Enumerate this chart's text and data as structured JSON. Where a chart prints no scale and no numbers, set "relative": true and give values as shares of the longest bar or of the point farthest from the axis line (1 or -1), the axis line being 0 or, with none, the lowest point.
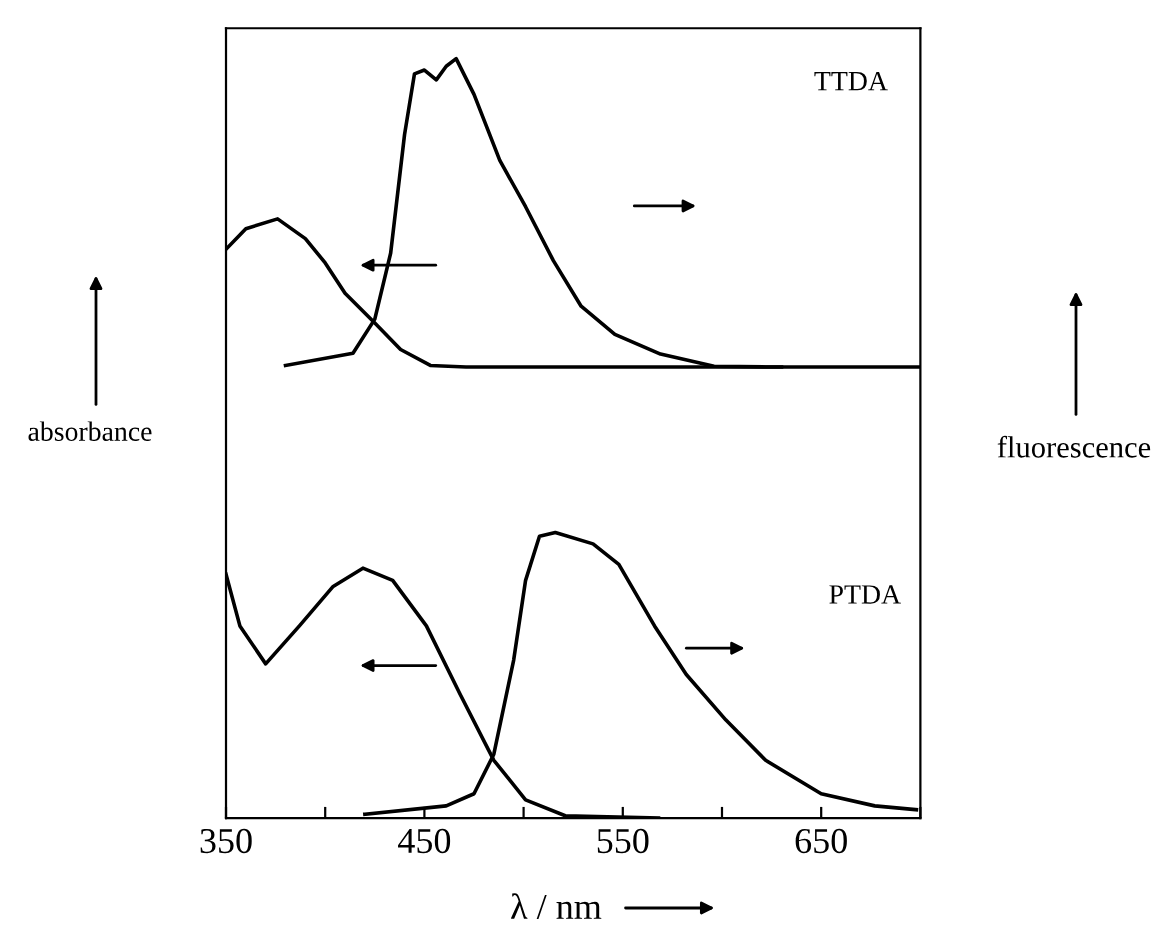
{
  "chart_data": {
    "type": "line",
    "relative": true,
    "xlabel": "λ / nm",
    "ylabel": "absorbance",
    "y2label": "fluorescence",
    "xlim": [
      350,
      700
    ],
    "xticks": [
      350,
      {
        "value": 400,
        "label": null
      },
      450,
      {
        "value": 500,
        "label": null
      },
      550,
      {
        "value": 600,
        "label": null
      },
      650,
      {
        "value": 700,
        "label": null
      }
    ],
    "annotations": [
      "TTDA",
      "PTDA"
    ],
    "grid": false,
    "legend": false,
    "marker": "none",
    "line_style": "solid",
    "series": [
      {
        "color": "#000000",
        "x": [
          350,
          360,
          376,
          390,
          400,
          410,
          425,
          438,
          453,
          471,
          700
        ],
        "values": [
          0.749,
          0.776,
          0.789,
          0.763,
          0.731,
          0.691,
          0.652,
          0.617,
          0.596,
          0.594,
          0.594
        ]
      },
      {
        "color": "#000000",
        "x": [
          380,
          414,
          425,
          433,
          440,
          445,
          450,
          456,
          461,
          466,
          475,
          488,
          501,
          515,
          529,
          546,
          569,
          596,
          622,
          630
        ],
        "values": [
          0.596,
          0.612,
          0.657,
          0.744,
          0.9,
          0.98,
          0.985,
          0.972,
          0.99,
          1.0,
          0.953,
          0.866,
          0.805,
          0.734,
          0.674,
          0.637,
          0.611,
          0.595,
          0.594,
          0.594
        ]
      },
      {
        "color": "#000000",
        "x": [
          350,
          357,
          370,
          387,
          404,
          419,
          434,
          451,
          468,
          485,
          501,
          521,
          568
        ],
        "values": [
          0.321,
          0.253,
          0.203,
          0.253,
          0.305,
          0.329,
          0.313,
          0.253,
          0.163,
          0.076,
          0.024,
          0.003,
          0.0
        ]
      },
      {
        "color": "#000000",
        "x": [
          420,
          461,
          475,
          485,
          495,
          501,
          508,
          516,
          535,
          548,
          566,
          582,
          602,
          622,
          650,
          677,
          698
        ],
        "values": [
          0.005,
          0.016,
          0.032,
          0.084,
          0.208,
          0.313,
          0.371,
          0.376,
          0.361,
          0.334,
          0.253,
          0.189,
          0.129,
          0.076,
          0.032,
          0.016,
          0.011
        ]
      }
    ]
  }
}
